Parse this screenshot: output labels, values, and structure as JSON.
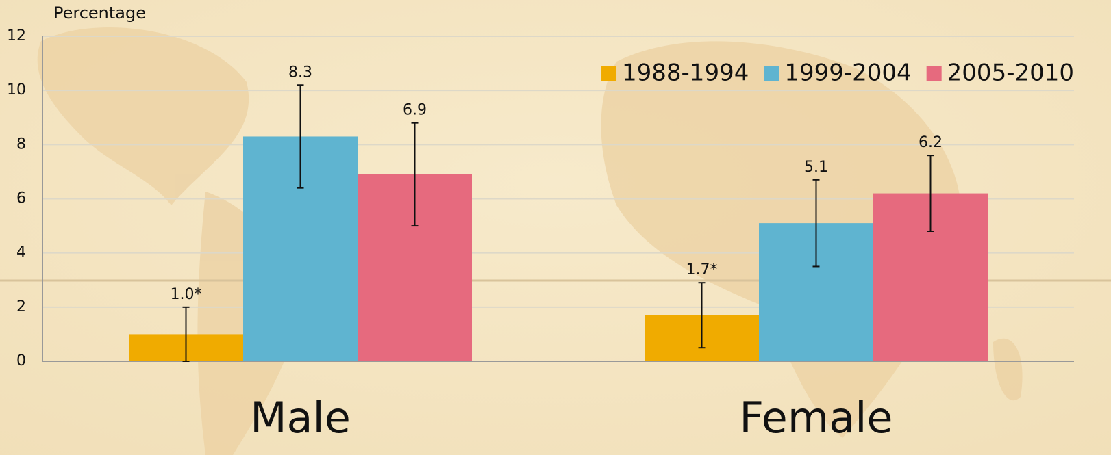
{
  "chart_data": {
    "type": "bar",
    "y_axis_label": "Percentage",
    "categories": [
      "Male",
      "Female"
    ],
    "series": [
      {
        "name": "1988-1994",
        "color": "#f0ab00",
        "values": [
          1.0,
          1.7
        ],
        "errors": [
          1.0,
          1.2
        ],
        "value_labels": [
          "1.0*",
          "1.7*"
        ]
      },
      {
        "name": "1999-2004",
        "color": "#5fb4d0",
        "values": [
          8.3,
          5.1
        ],
        "errors": [
          1.9,
          1.6
        ],
        "value_labels": [
          "8.3",
          "5.1"
        ]
      },
      {
        "name": "2005-2010",
        "color": "#e66a7e",
        "values": [
          6.9,
          6.2
        ],
        "errors": [
          1.9,
          1.4
        ],
        "value_labels": [
          "6.9",
          "6.2"
        ]
      }
    ],
    "ylim": [
      0,
      12
    ],
    "yticks": [
      0,
      2,
      4,
      6,
      8,
      10,
      12
    ],
    "grid": true,
    "legend": "top-right"
  }
}
